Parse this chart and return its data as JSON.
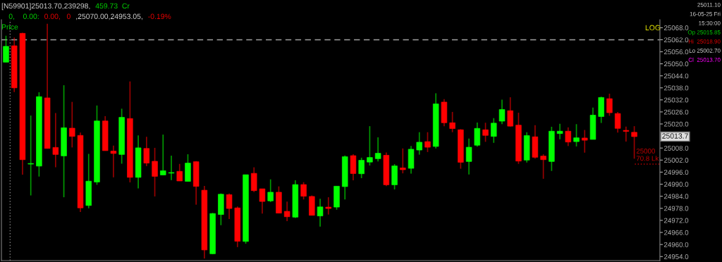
{
  "chart_data": {
    "type": "candlestick",
    "categories": [
      null,
      null,
      null,
      null,
      null,
      null,
      null,
      null,
      null,
      null,
      null,
      null,
      null,
      null,
      null,
      null,
      null,
      null,
      null,
      null,
      null,
      null,
      null,
      null,
      null,
      null,
      null,
      null,
      null,
      null,
      null,
      null,
      null,
      null,
      null,
      null,
      null,
      null,
      null,
      null,
      null,
      null,
      null,
      null,
      null,
      null,
      null,
      null,
      null,
      null,
      null,
      null,
      null,
      null,
      null,
      null,
      null,
      null,
      null,
      null,
      null,
      null,
      null,
      null,
      null,
      null,
      null,
      null,
      null,
      null,
      null,
      null,
      null,
      null,
      null,
      null,
      null
    ],
    "ohlc": [
      [
        25050.8,
        25064.0,
        25050.8,
        25058.7
      ],
      [
        25059.0,
        25063.1,
        25035.9,
        25038.0
      ],
      [
        25065.2,
        25065.5,
        24994.7,
        25002.2
      ],
      [
        25000.0,
        25024.2,
        24984.4,
        25000.3
      ],
      [
        24999.0,
        25035.8,
        24993.8,
        25033.6
      ],
      [
        25033.0,
        25070.0,
        25007.8,
        25007.8
      ],
      [
        25008.3,
        25025.4,
        24998.4,
        25004.8
      ],
      [
        25004.1,
        25039.3,
        24983.5,
        25018.1
      ],
      [
        25017.9,
        25031.0,
        25008.3,
        25013.8
      ],
      [
        25014.3,
        25015.7,
        24976.2,
        24978.2
      ],
      [
        24979.4,
        25005.1,
        24978.0,
        24991.5
      ],
      [
        24991.1,
        25029.2,
        24989.7,
        25021.5
      ],
      [
        25021.5,
        25023.9,
        25006.7,
        25006.7
      ],
      [
        25006.5,
        25009.2,
        24993.4,
        25005.3
      ],
      [
        25004.8,
        25027.6,
        25000.2,
        25023.3
      ],
      [
        25022.7,
        25041.2,
        24990.9,
        24993.4
      ],
      [
        24993.4,
        25014.3,
        24987.9,
        25008.1
      ],
      [
        25007.8,
        25013.6,
        24999.0,
        25000.5
      ],
      [
        25001.4,
        25008.1,
        24983.9,
        24993.9
      ],
      [
        24994.6,
        25014.7,
        24994.6,
        24996.7
      ],
      [
        24995.5,
        25004.2,
        24992.0,
        24995.8
      ],
      [
        24996.4,
        25000.1,
        24991.6,
        24991.6
      ],
      [
        24991.4,
        25004.9,
        24991.4,
        25000.5
      ],
      [
        25001.2,
        25001.5,
        24979.8,
        24988.9
      ],
      [
        24987.0,
        24989.1,
        24953.05,
        24957.3
      ],
      [
        24955.4,
        24975.7,
        24955.2,
        24975.4
      ],
      [
        24974.9,
        24985.4,
        24969.6,
        24985.0
      ],
      [
        24984.8,
        24985.4,
        24972.7,
        24977.9
      ],
      [
        24978.2,
        24978.9,
        24958.7,
        24961.6
      ],
      [
        24961.5,
        24994.7,
        24960.4,
        24994.7
      ],
      [
        24995.4,
        24998.4,
        24986.1,
        24986.8
      ],
      [
        24987.7,
        24987.7,
        24975.4,
        24981.4
      ],
      [
        24981.7,
        24992.4,
        24981.1,
        24986.0
      ],
      [
        24986.0,
        24988.9,
        24975.6,
        24975.6
      ],
      [
        24976.5,
        24981.3,
        24971.6,
        24973.8
      ],
      [
        24973.6,
        24991.9,
        24973.2,
        24989.8
      ],
      [
        24989.8,
        24991.0,
        24982.4,
        24984.0
      ],
      [
        24983.9,
        24984.4,
        24974.5,
        24974.5
      ],
      [
        24974.2,
        24982.7,
        24968.9,
        24978.7
      ],
      [
        24978.6,
        24983.5,
        24974.9,
        24977.9
      ],
      [
        24978.6,
        24989.0,
        24977.3,
        24989.0
      ],
      [
        24988.8,
        25004.3,
        24982.4,
        25003.7
      ],
      [
        25004.2,
        25004.9,
        24991.9,
        24995.3
      ],
      [
        24995.2,
        25003.2,
        24993.0,
        25001.9
      ],
      [
        25001.0,
        25018.9,
        24999.3,
        25003.3
      ],
      [
        25002.7,
        25013.3,
        25001.3,
        25005.4
      ],
      [
        25004.4,
        25005.8,
        24989.0,
        24989.7
      ],
      [
        24989.7,
        25000.0,
        24987.4,
        24999.1
      ],
      [
        24998.1,
        25007.8,
        24995.4,
        24997.2
      ],
      [
        24997.9,
        25009.0,
        24995.3,
        25007.4
      ],
      [
        25007.0,
        25015.9,
        25004.7,
        25010.9
      ],
      [
        25011.2,
        25015.9,
        25006.0,
        25008.4
      ],
      [
        25008.8,
        25035.3,
        25007.8,
        25030.0
      ],
      [
        25030.9,
        25032.4,
        25018.9,
        25020.6
      ],
      [
        25020.6,
        25026.0,
        25015.9,
        25017.7
      ],
      [
        25017.1,
        25017.4,
        24997.7,
        25000.9
      ],
      [
        25001.3,
        25012.7,
        24994.8,
        25008.4
      ],
      [
        25009.4,
        25020.7,
        25008.7,
        25017.8
      ],
      [
        25017.1,
        25020.6,
        25011.1,
        25014.3
      ],
      [
        25013.8,
        25022.9,
        25010.6,
        25020.4
      ],
      [
        25021.4,
        25032.1,
        25019.9,
        25027.2
      ],
      [
        25026.6,
        25033.3,
        25018.7,
        25018.9
      ],
      [
        25019.4,
        25025.6,
        25000.1,
        25001.5
      ],
      [
        25002.0,
        25015.9,
        25000.8,
        25014.2
      ],
      [
        25013.6,
        25019.4,
        25002.7,
        25003.4
      ],
      [
        25004.0,
        25004.9,
        24992.7,
        25002.2
      ],
      [
        25001.3,
        25018.6,
        24996.6,
        25016.4
      ],
      [
        25015.2,
        25020.1,
        25012.4,
        25016.4
      ],
      [
        25016.4,
        25018.3,
        25009.0,
        25011.0
      ],
      [
        25011.2,
        25019.9,
        25008.8,
        25013.1
      ],
      [
        25013.0,
        25017.0,
        25005.7,
        25011.9
      ],
      [
        25012.3,
        25028.2,
        25012.3,
        25024.4
      ],
      [
        25023.7,
        25033.6,
        25020.5,
        25033.2
      ],
      [
        25032.6,
        25035.1,
        25024.1,
        25025.6
      ],
      [
        25025.2,
        25026.0,
        25015.7,
        25017.8
      ],
      [
        25016.8,
        25018.7,
        25011.2,
        25016.3
      ],
      [
        25015.85,
        25018.9,
        25002.7,
        25013.7
      ]
    ],
    "colors": [
      "#00ff00",
      "#ff0000",
      "#ff0000",
      "#00ff00",
      "#00ff00",
      "#ff0000",
      "#ff0000",
      "#00ff00",
      "#ff0000",
      "#ff0000",
      "#00ff00",
      "#00ff00",
      "#ff0000",
      "#ff0000",
      "#00ff00",
      "#ff0000",
      "#00ff00",
      "#ff0000",
      "#ff0000",
      "#00ff00",
      "#00ff00",
      "#ff0000",
      "#00ff00",
      "#ff0000",
      "#ff0000",
      "#00ff00",
      "#00ff00",
      "#ff0000",
      "#ff0000",
      "#00ff00",
      "#ff0000",
      "#ff0000",
      "#00ff00",
      "#ff0000",
      "#ff0000",
      "#00ff00",
      "#ff0000",
      "#ff0000",
      "#00ff00",
      "#ff0000",
      "#00ff00",
      "#00ff00",
      "#ff0000",
      "#00ff00",
      "#00ff00",
      "#00ff00",
      "#ff0000",
      "#00ff00",
      "#ff0000",
      "#00ff00",
      "#00ff00",
      "#ff0000",
      "#00ff00",
      "#ff0000",
      "#ff0000",
      "#ff0000",
      "#00ff00",
      "#00ff00",
      "#ff0000",
      "#00ff00",
      "#00ff00",
      "#ff0000",
      "#ff0000",
      "#00ff00",
      "#ff0000",
      "#ff0000",
      "#00ff00",
      "#00ff00",
      "#ff0000",
      "#00ff00",
      "#ff0000",
      "#00ff00",
      "#00ff00",
      "#ff0000",
      "#ff0000",
      "#ff0000",
      "#ff0000"
    ],
    "log": "y",
    "ylim": [
      24952,
      25072
    ],
    "yticks": [
      {
        "value": 24954,
        "label": "24954.0"
      },
      {
        "value": 24960,
        "label": "24960.0"
      },
      {
        "value": 24966,
        "label": "24966.0"
      },
      {
        "value": 24972,
        "label": "24972.0"
      },
      {
        "value": 24978,
        "label": "24978.0"
      },
      {
        "value": 24984,
        "label": "24984.0"
      },
      {
        "value": 24990,
        "label": "24990.0"
      },
      {
        "value": 24996,
        "label": "24996.0"
      },
      {
        "value": 25002,
        "label": "25002.0"
      },
      {
        "value": 25008,
        "label": "25008.0"
      },
      {
        "value": 25020,
        "label": "25020.0"
      },
      {
        "value": 25026,
        "label": "25026.0"
      },
      {
        "value": 25032,
        "label": "25032.0"
      },
      {
        "value": 25038,
        "label": "25038.0"
      },
      {
        "value": 25044,
        "label": "25044.0"
      },
      {
        "value": 25050,
        "label": "25050.0"
      },
      {
        "value": 25056,
        "label": "25056.0"
      },
      {
        "value": 25062,
        "label": "25062.0"
      },
      {
        "value": 25068,
        "label": "25068.0"
      }
    ],
    "tick_labels": "y",
    "grid": false,
    "ref_lines": [
      {
        "axis": "y",
        "value": 25062,
        "color": "#a0a0a0",
        "line_style": "dashed"
      },
      {
        "axis": "y",
        "value": 25000,
        "label": "25000\n70.8 Lk",
        "color": "#c00000",
        "line_style": "dotted"
      }
    ],
    "annotations": [
      "[N59901]25013.70,239298,",
      "459.73  Cr",
      "0,    0.00:",
      "0.00,   0",
      ",25070.00,24953.05,",
      "-0.19%",
      "Price",
      "LOG",
      "25011.10",
      "16-05-25 Fri",
      "15:30:00",
      "Op 25015.85",
      "Hi  25018.90",
      "Lo 25002.70",
      "Cl  25013.70",
      "25013.7"
    ]
  }
}
